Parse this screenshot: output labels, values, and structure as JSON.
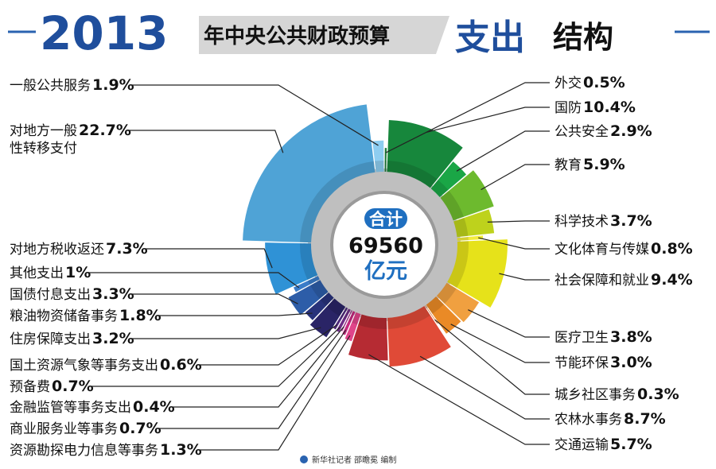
{
  "header": {
    "year": "2013",
    "subtitle": "年中央公共财政预算",
    "title_main": "支出",
    "title_tail": "结构"
  },
  "center": {
    "badge": "合计",
    "total": "69560",
    "unit": "亿元"
  },
  "credit": "新华社记者 邵瞻冕 编制",
  "chart_data": {
    "type": "pie",
    "title": "2013年中央公共财政预算支出结构",
    "total_label": "合计 69560 亿元",
    "unit": "%",
    "slices": [
      {
        "label": "外交",
        "value": 0.5,
        "display": "0.5%",
        "color": "#1e7a3a",
        "side": "right"
      },
      {
        "label": "国防",
        "value": 10.4,
        "display": "10.4%",
        "color": "#17873c",
        "side": "right"
      },
      {
        "label": "公共安全",
        "value": 2.9,
        "display": "2.9%",
        "color": "#1aa646",
        "side": "right"
      },
      {
        "label": "教育",
        "value": 5.9,
        "display": "5.9%",
        "color": "#6dba2e",
        "side": "right"
      },
      {
        "label": "科学技术",
        "value": 3.7,
        "display": "3.7%",
        "color": "#bed21c",
        "side": "right"
      },
      {
        "label": "文化体育与传媒",
        "value": 0.8,
        "display": "0.8%",
        "color": "#f3ec3c",
        "side": "right"
      },
      {
        "label": "社会保障和就业",
        "value": 9.4,
        "display": "9.4%",
        "color": "#e6e21a",
        "side": "right"
      },
      {
        "label": "医疗卫生",
        "value": 3.8,
        "display": "3.8%",
        "color": "#f0a040",
        "side": "right"
      },
      {
        "label": "节能环保",
        "value": 3.0,
        "display": "3.0%",
        "color": "#ea8a26",
        "side": "right"
      },
      {
        "label": "城乡社区事务",
        "value": 0.3,
        "display": "0.3%",
        "color": "#e66e22",
        "side": "right"
      },
      {
        "label": "农林水事务",
        "value": 8.7,
        "display": "8.7%",
        "color": "#e04a37",
        "side": "right"
      },
      {
        "label": "交通运输",
        "value": 5.7,
        "display": "5.7%",
        "color": "#b62b33",
        "side": "right"
      },
      {
        "label": "资源勘探电力信息等事务",
        "value": 1.3,
        "display": "1.3%",
        "color": "#e0458a",
        "side": "left"
      },
      {
        "label": "商业服务业等事务",
        "value": 0.7,
        "display": "0.7%",
        "color": "#c42a80",
        "side": "left"
      },
      {
        "label": "金融监管等事务支出",
        "value": 0.4,
        "display": "0.4%",
        "color": "#9b2d86",
        "side": "left"
      },
      {
        "label": "预备费",
        "value": 0.7,
        "display": "0.7%",
        "color": "#6e2d87",
        "side": "left"
      },
      {
        "label": "国土资源气象等事务支出",
        "value": 0.6,
        "display": "0.6%",
        "color": "#4e2a7a",
        "side": "left"
      },
      {
        "label": "住房保障支出",
        "value": 3.2,
        "display": "3.2%",
        "color": "#2a2466",
        "side": "left"
      },
      {
        "label": "粮油物资储备事务",
        "value": 1.8,
        "display": "1.8%",
        "color": "#28327a",
        "side": "left"
      },
      {
        "label": "国债付息支出",
        "value": 3.3,
        "display": "3.3%",
        "color": "#2d5da8",
        "side": "left"
      },
      {
        "label": "其他支出",
        "value": 1.0,
        "display": "1%",
        "color": "#3a7cc8",
        "side": "left"
      },
      {
        "label": "对地方税收返还",
        "value": 7.3,
        "display": "7.3%",
        "color": "#2f92d6",
        "side": "left"
      },
      {
        "label": "对地方一般性转移支付",
        "value": 22.7,
        "display": "22.7%",
        "color": "#4fa3d6",
        "side": "left",
        "label_lines": [
          "对地方一般",
          "性转移支付"
        ]
      },
      {
        "label": "一般公共服务",
        "value": 1.9,
        "display": "1.9%",
        "color": "#8ecdf0",
        "side": "left"
      }
    ]
  }
}
